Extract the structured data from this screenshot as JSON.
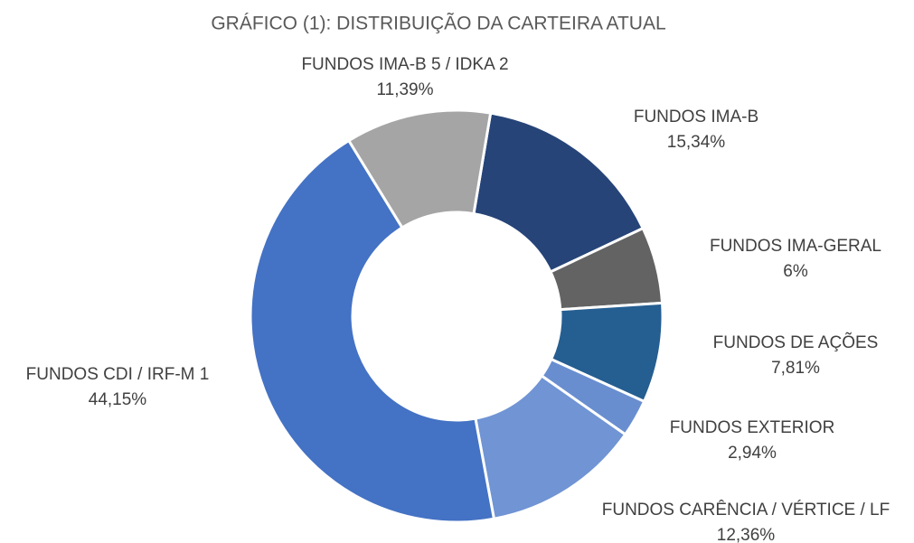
{
  "chart_data": {
    "type": "pie",
    "donut": true,
    "title": "GRÁFICO (1): DISTRIBUIÇÃO DA CARTEIRA ATUAL",
    "categories": [
      "FUNDOS IMA-B",
      "FUNDOS IMA-GERAL",
      "FUNDOS DE AÇÕES",
      "FUNDOS EXTERIOR",
      "FUNDOS CARÊNCIA / VÉRTICE / LF",
      "FUNDOS CDI / IRF-M 1",
      "FUNDOS IMA-B 5 / IDKA 2"
    ],
    "values": [
      15.34,
      6,
      7.81,
      2.94,
      12.36,
      44.15,
      11.39
    ],
    "value_labels": [
      "15,34%",
      "6%",
      "7,81%",
      "2,94%",
      "12,36%",
      "44,15%",
      "11,39%"
    ],
    "colors": [
      "#264478",
      "#636363",
      "#255e91",
      "#698ed0",
      "#7094d4",
      "#4472c4",
      "#a5a5a5"
    ]
  }
}
